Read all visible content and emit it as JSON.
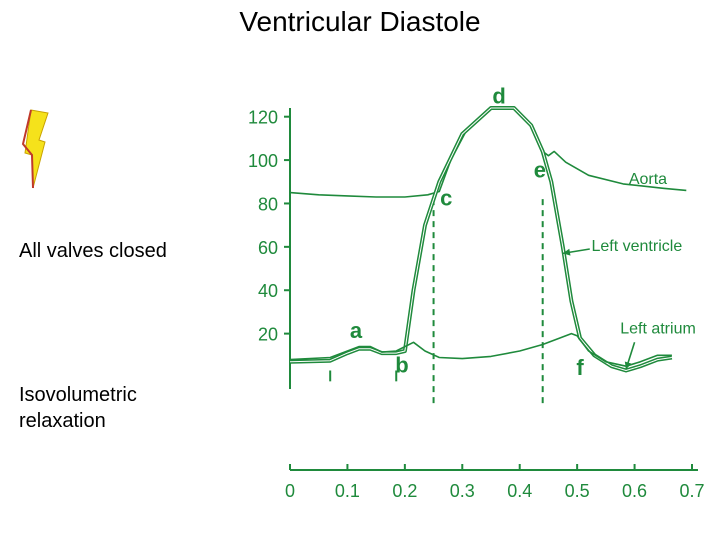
{
  "slide": {
    "title": "Ventricular Diastole",
    "labels": [
      "All valves closed",
      "Isovolumetric\nrelaxation"
    ]
  },
  "chart_data": {
    "type": "line",
    "color": "#1f8a3c",
    "highlight_color": "#f5e21b",
    "ylim": [
      0,
      130
    ],
    "xlim": [
      0,
      0.7
    ],
    "y_ticks": [
      20,
      40,
      60,
      80,
      100,
      120
    ],
    "x_ticks": [
      "0",
      "0.1",
      "0.2",
      "0.3",
      "0.4",
      "0.5",
      "0.6",
      "0.7"
    ],
    "series": [
      {
        "name": "Aorta",
        "points": [
          [
            0,
            85
          ],
          [
            0.05,
            84
          ],
          [
            0.1,
            83.5
          ],
          [
            0.15,
            83
          ],
          [
            0.2,
            83
          ],
          [
            0.24,
            84
          ],
          [
            0.26,
            85.5
          ],
          [
            0.28,
            100
          ],
          [
            0.31,
            115
          ],
          [
            0.35,
            124
          ],
          [
            0.39,
            124
          ],
          [
            0.42,
            116
          ],
          [
            0.44,
            104
          ],
          [
            0.45,
            102
          ],
          [
            0.46,
            104
          ],
          [
            0.48,
            99
          ],
          [
            0.52,
            93
          ],
          [
            0.58,
            89
          ],
          [
            0.65,
            87
          ],
          [
            0.69,
            86
          ]
        ]
      },
      {
        "name": "Left ventricle",
        "points": [
          [
            0,
            7
          ],
          [
            0.07,
            7.5
          ],
          [
            0.1,
            11
          ],
          [
            0.12,
            13
          ],
          [
            0.14,
            13
          ],
          [
            0.16,
            11
          ],
          [
            0.185,
            11
          ],
          [
            0.2,
            12
          ],
          [
            0.215,
            40
          ],
          [
            0.235,
            70
          ],
          [
            0.26,
            90
          ],
          [
            0.3,
            112
          ],
          [
            0.35,
            124
          ],
          [
            0.39,
            124
          ],
          [
            0.42,
            116
          ],
          [
            0.44,
            104
          ],
          [
            0.455,
            90
          ],
          [
            0.475,
            60
          ],
          [
            0.49,
            35
          ],
          [
            0.505,
            18
          ],
          [
            0.53,
            10
          ],
          [
            0.56,
            5
          ],
          [
            0.585,
            3
          ],
          [
            0.61,
            5
          ],
          [
            0.64,
            8
          ],
          [
            0.665,
            9
          ]
        ]
      },
      {
        "name": "Left atrium",
        "points": [
          [
            0,
            8
          ],
          [
            0.07,
            9
          ],
          [
            0.1,
            12
          ],
          [
            0.12,
            14
          ],
          [
            0.14,
            14
          ],
          [
            0.16,
            11.5
          ],
          [
            0.185,
            12
          ],
          [
            0.2,
            14
          ],
          [
            0.215,
            16
          ],
          [
            0.235,
            12
          ],
          [
            0.26,
            9
          ],
          [
            0.3,
            8.5
          ],
          [
            0.35,
            9.5
          ],
          [
            0.4,
            12
          ],
          [
            0.44,
            15
          ],
          [
            0.47,
            18
          ],
          [
            0.49,
            20
          ],
          [
            0.5,
            19
          ],
          [
            0.52,
            12
          ],
          [
            0.55,
            7
          ],
          [
            0.585,
            5
          ],
          [
            0.61,
            7
          ],
          [
            0.64,
            10
          ],
          [
            0.665,
            10
          ]
        ]
      }
    ],
    "vlines": [
      0.25,
      0.44
    ],
    "point_labels": [
      {
        "text": "a",
        "x": 0.115,
        "y": 18
      },
      {
        "text": "b",
        "x": 0.195,
        "y": 2
      },
      {
        "text": "c",
        "x": 0.272,
        "y": 79
      },
      {
        "text": "d",
        "x": 0.364,
        "y": 126
      },
      {
        "text": "e",
        "x": 0.435,
        "y": 92
      },
      {
        "text": "f",
        "x": 0.505,
        "y": 1
      }
    ],
    "annotations": [
      {
        "text": "Aorta",
        "x": 0.59,
        "y": 89
      },
      {
        "text": "Left ventricle",
        "x": 0.525,
        "y": 58
      },
      {
        "text": "Left atrium",
        "x": 0.575,
        "y": 20
      }
    ]
  }
}
